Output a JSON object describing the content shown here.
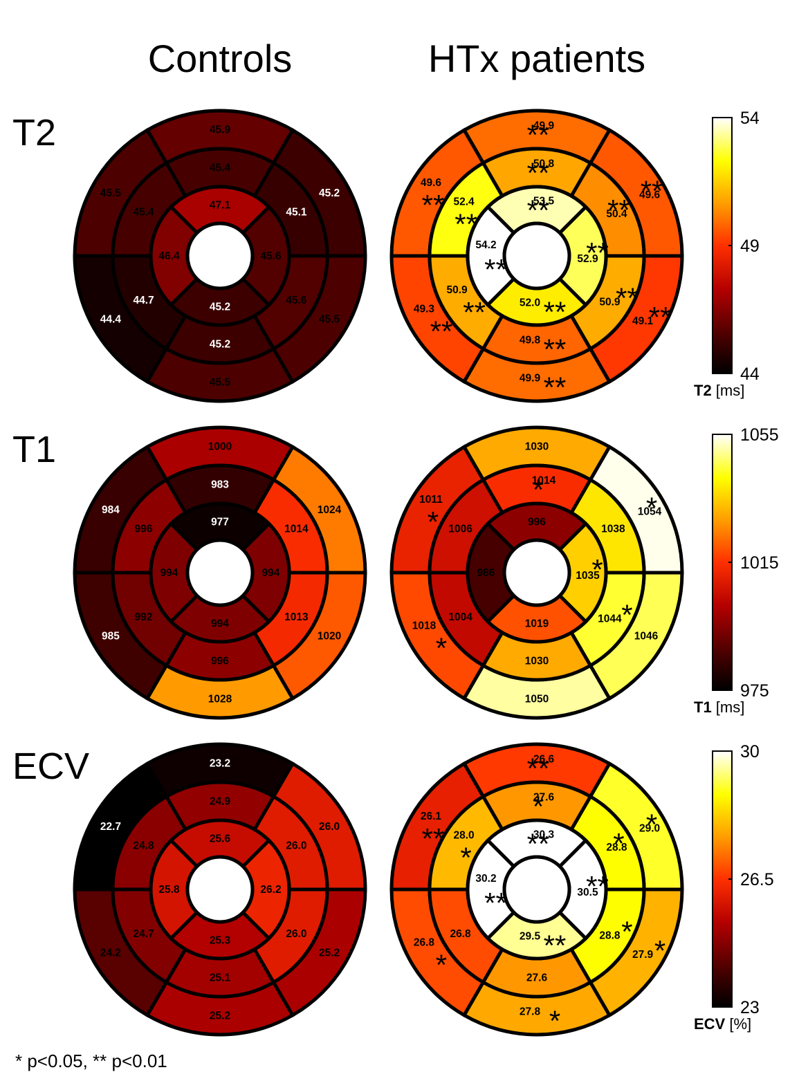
{
  "column_titles": {
    "controls": "Controls",
    "htx": "HTx patients"
  },
  "footnote": "* p<0.05, ** p<0.01",
  "chart_data": [
    {
      "type": "heatmap",
      "subtype": "bullseye-17-segment",
      "metric": "T2",
      "row_title": "T2",
      "colorbar": {
        "min": 44,
        "max": 54,
        "ticks": [
          "54",
          "49",
          "44"
        ],
        "tick_values": [
          54,
          49,
          44
        ],
        "label_bold": "T2",
        "label_unit": " [ms]"
      },
      "controls": {
        "basal": [
          "45.9",
          "45.5",
          "44.4",
          "45.5",
          "45.5",
          "45.2"
        ],
        "mid": [
          "45.4",
          "45.4",
          "44.7",
          "45.2",
          "45.6",
          "45.1"
        ],
        "apical": [
          "47.1",
          "46.4",
          "45.2",
          "45.6"
        ],
        "sig_basal": [
          "",
          "",
          "",
          "",
          "",
          ""
        ],
        "sig_mid": [
          "",
          "",
          "",
          "",
          "",
          ""
        ],
        "sig_apical": [
          "",
          "",
          "",
          ""
        ]
      },
      "htx": {
        "basal": [
          "49.9",
          "49.6",
          "49.3",
          "49.9",
          "49.1",
          "49.6"
        ],
        "mid": [
          "50.8",
          "52.4",
          "50.9",
          "49.8",
          "50.9",
          "50.4"
        ],
        "apical": [
          "53.5",
          "54.2",
          "52.0",
          "52.9"
        ],
        "sig_basal": [
          "**",
          "**",
          "**",
          "**",
          "**",
          "**"
        ],
        "sig_mid": [
          "**",
          "**",
          "**",
          "**",
          "**",
          "**"
        ],
        "sig_apical": [
          "**",
          "**",
          "**",
          "**"
        ]
      }
    },
    {
      "type": "heatmap",
      "subtype": "bullseye-17-segment",
      "metric": "T1",
      "row_title": "T1",
      "colorbar": {
        "min": 975,
        "max": 1055,
        "ticks": [
          "1055",
          "1015",
          "975"
        ],
        "tick_values": [
          1055,
          1015,
          975
        ],
        "label_bold": "T1",
        "label_unit": " [ms]"
      },
      "controls": {
        "basal": [
          "1000",
          "984",
          "985",
          "1028",
          "1020",
          "1024"
        ],
        "mid": [
          "983",
          "996",
          "992",
          "996",
          "1013",
          "1014"
        ],
        "apical": [
          "977",
          "994",
          "994",
          "994"
        ],
        "sig_basal": [
          "",
          "",
          "",
          "",
          "",
          ""
        ],
        "sig_mid": [
          "",
          "",
          "",
          "",
          "",
          ""
        ],
        "sig_apical": [
          "",
          "",
          "",
          ""
        ]
      },
      "htx": {
        "basal": [
          "1030",
          "1011",
          "1018",
          "1050",
          "1046",
          "1054"
        ],
        "mid": [
          "1014",
          "1006",
          "1004",
          "1030",
          "1044",
          "1038"
        ],
        "apical": [
          "996",
          "986",
          "1019",
          "1035"
        ],
        "sig_basal": [
          "",
          "*",
          "*",
          "",
          "",
          "*"
        ],
        "sig_mid": [
          "*",
          "",
          "",
          "",
          "*",
          ""
        ],
        "sig_apical": [
          "",
          "",
          "",
          "*"
        ]
      }
    },
    {
      "type": "heatmap",
      "subtype": "bullseye-17-segment",
      "metric": "ECV",
      "row_title": "ECV",
      "colorbar": {
        "min": 23,
        "max": 30,
        "ticks": [
          "30",
          "26.5",
          "23"
        ],
        "tick_values": [
          30,
          26.5,
          23
        ],
        "label_bold": "ECV",
        "label_unit": " [%]"
      },
      "controls": {
        "basal": [
          "23.2",
          "22.7",
          "24.2",
          "25.2",
          "25.2",
          "26.0"
        ],
        "mid": [
          "24.9",
          "24.8",
          "24.7",
          "25.1",
          "26.0",
          "26.0"
        ],
        "apical": [
          "25.6",
          "25.8",
          "25.3",
          "26.2"
        ],
        "sig_basal": [
          "",
          "",
          "",
          "",
          "",
          ""
        ],
        "sig_mid": [
          "",
          "",
          "",
          "",
          "",
          ""
        ],
        "sig_apical": [
          "",
          "",
          "",
          ""
        ]
      },
      "htx": {
        "basal": [
          "26.6",
          "26.1",
          "26.8",
          "27.8",
          "27.9",
          "29.0"
        ],
        "mid": [
          "27.6",
          "28.0",
          "26.8",
          "27.6",
          "28.8",
          "28.8"
        ],
        "apical": [
          "30.3",
          "30.2",
          "29.5",
          "30.5"
        ],
        "sig_basal": [
          "**",
          "**",
          "*",
          "*",
          "*",
          "*"
        ],
        "sig_mid": [
          "*",
          "*",
          "",
          "",
          "*",
          "*"
        ],
        "sig_apical": [
          "**",
          "**",
          "**",
          "**"
        ]
      }
    }
  ]
}
